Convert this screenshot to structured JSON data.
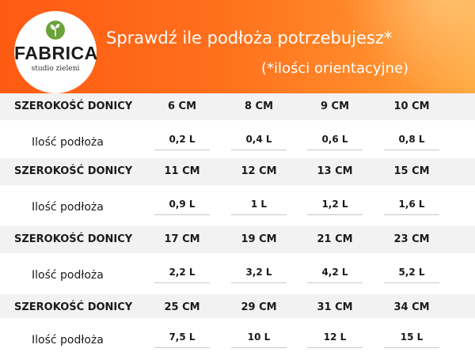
{
  "header": {
    "logo_brand": "FABRICA",
    "logo_sub": "studio zieleni",
    "title": "Sprawdź ile podłoża potrzebujesz*",
    "subtitle": "(*ilości orientacyjne)"
  },
  "colors": {
    "header_orange": "#ff6f1c",
    "row_grey": "#f2f2f2",
    "logo_green": "#6aa33a"
  },
  "table": {
    "size_label": "SZEROKOŚĆ DONICY",
    "amount_label": "Ilość podłoża",
    "groups": [
      {
        "sizes": [
          "6 CM",
          "8 CM",
          "9 CM",
          "10 CM"
        ],
        "amounts": [
          "0,2 L",
          "0,4 L",
          "0,6 L",
          "0,8 L"
        ]
      },
      {
        "sizes": [
          "11 CM",
          "12 CM",
          "13 CM",
          "15 CM"
        ],
        "amounts": [
          "0,9 L",
          "1 L",
          "1,2 L",
          "1,6 L"
        ]
      },
      {
        "sizes": [
          "17 CM",
          "19 CM",
          "21 CM",
          "23 CM"
        ],
        "amounts": [
          "2,2 L",
          "3,2 L",
          "4,2 L",
          "5,2 L"
        ]
      },
      {
        "sizes": [
          "25 CM",
          "29 CM",
          "31 CM",
          "34 CM"
        ],
        "amounts": [
          "7,5 L",
          "10 L",
          "12 L",
          "15 L"
        ]
      }
    ]
  }
}
